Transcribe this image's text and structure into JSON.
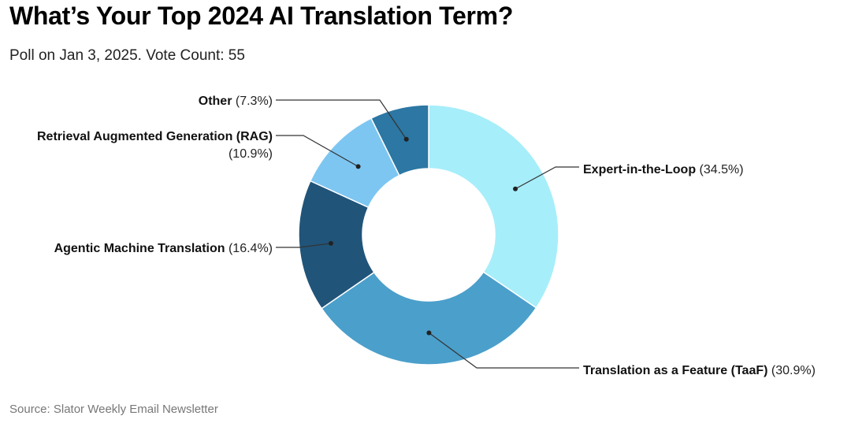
{
  "header": {
    "title": "What’s Your Top 2024 AI Translation Term?",
    "subtitle": "Poll on Jan 3, 2025. Vote Count: 55"
  },
  "footer": {
    "source": "Source: Slator Weekly Email Newsletter"
  },
  "chart_data": {
    "type": "pie",
    "variant": "donut",
    "title": "What’s Your Top 2024 AI Translation Term?",
    "subtitle": "Poll on Jan 3, 2025. Vote Count: 55",
    "slices": [
      {
        "label": "Expert-in-the-Loop",
        "value": 34.5,
        "value_label": "(34.5%)",
        "color": "#a6eefa"
      },
      {
        "label": "Translation as a Feature (TaaF)",
        "value": 30.9,
        "value_label": "(30.9%)",
        "color": "#4b9fcb"
      },
      {
        "label": "Agentic Machine Translation",
        "value": 16.4,
        "value_label": "(16.4%)",
        "color": "#215479"
      },
      {
        "label": "Retrieval Augmented Generation (RAG)",
        "value": 10.9,
        "value_label": "(10.9%)",
        "color": "#7dc6f1"
      },
      {
        "label": "Other",
        "value": 7.3,
        "value_label": "(7.3%)",
        "color": "#2c77a3"
      }
    ]
  }
}
